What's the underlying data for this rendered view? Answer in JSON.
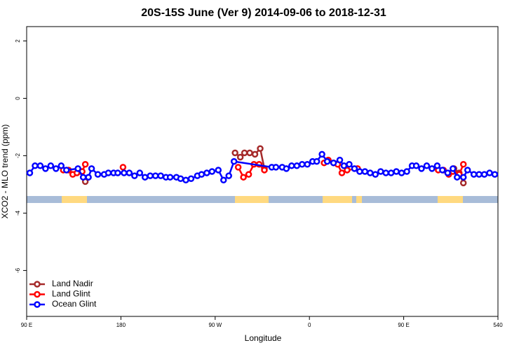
{
  "chart_data": {
    "type": "line",
    "title": "20S-15S June (Ver 9)   2014-09-06 to 2018-12-31",
    "x_label": "Longitude",
    "y_label": "XCO2 - MLO trend (ppm)",
    "xlim": [
      90,
      540
    ],
    "ylim": [
      -7.6,
      2.5
    ],
    "xticks": [
      {
        "value": 90,
        "label": "90 E"
      },
      180,
      {
        "value": 270,
        "label": "90 W"
      },
      {
        "value": 360,
        "label": "0"
      },
      {
        "value": 450,
        "label": "90 E"
      },
      540
    ],
    "yticks": [
      2,
      0,
      -2,
      -4,
      -6
    ],
    "legend": "bottom-left",
    "series": [
      {
        "name": "Land Nadir",
        "color": "#a52a2a",
        "x": [
          142,
          146,
          200,
          289,
          294,
          298,
          303,
          308,
          313,
          317,
          400,
          498,
          503,
          507
        ],
        "values": [
          -2.55,
          -2.9,
          null,
          -1.9,
          -2.05,
          -1.9,
          -1.9,
          -1.95,
          -1.75,
          -2.45,
          null,
          -2.45,
          -2.6,
          -2.95
        ]
      },
      {
        "name": "Land Glint",
        "color": "#ff0000",
        "x": [
          125,
          130,
          134,
          138,
          143,
          146,
          160,
          182,
          250,
          292,
          297,
          302,
          307,
          312,
          317,
          350,
          374,
          378,
          383,
          387,
          391,
          396,
          406,
          450,
          483,
          488,
          493,
          497,
          503,
          507
        ],
        "values": [
          -2.5,
          -2.5,
          -2.65,
          -2.6,
          -2.55,
          -2.3,
          null,
          -2.4,
          null,
          -2.4,
          -2.75,
          -2.65,
          -2.3,
          -2.3,
          -2.5,
          null,
          -2.25,
          -2.15,
          -2.25,
          -2.3,
          -2.6,
          -2.5,
          -2.45,
          null,
          -2.5,
          -2.5,
          -2.65,
          -2.55,
          -2.65,
          -2.3
        ]
      },
      {
        "name": "Ocean Glint",
        "color": "#0000ff",
        "x": [
          93,
          98,
          103,
          108,
          113,
          118,
          123,
          128,
          139,
          144,
          149,
          152,
          158,
          164,
          168,
          173,
          177,
          183,
          188,
          193,
          198,
          203,
          208,
          213,
          218,
          223,
          227,
          233,
          237,
          242,
          247,
          253,
          257,
          262,
          267,
          273,
          278,
          283,
          288,
          324,
          328,
          334,
          338,
          343,
          348,
          353,
          358,
          363,
          367,
          372,
          377,
          383,
          389,
          393,
          398,
          403,
          408,
          413,
          418,
          423,
          428,
          433,
          438,
          443,
          448,
          453,
          458,
          462,
          467,
          472,
          477,
          482,
          487,
          492,
          497,
          501,
          507,
          511,
          517,
          522,
          527,
          532,
          537
        ],
        "values": [
          -2.6,
          -2.35,
          -2.35,
          -2.45,
          -2.35,
          -2.45,
          -2.35,
          -2.5,
          -2.45,
          -2.75,
          -2.75,
          -2.45,
          -2.65,
          -2.65,
          -2.6,
          -2.6,
          -2.6,
          -2.6,
          -2.6,
          -2.7,
          -2.6,
          -2.75,
          -2.7,
          -2.7,
          -2.7,
          -2.75,
          -2.75,
          -2.75,
          -2.8,
          -2.85,
          -2.8,
          -2.7,
          -2.65,
          -2.6,
          -2.55,
          -2.5,
          -2.85,
          -2.7,
          -2.2,
          -2.4,
          -2.4,
          -2.4,
          -2.45,
          -2.35,
          -2.35,
          -2.3,
          -2.3,
          -2.2,
          -2.2,
          -1.95,
          -2.2,
          -2.25,
          -2.15,
          -2.35,
          -2.3,
          -2.45,
          -2.55,
          -2.55,
          -2.6,
          -2.65,
          -2.55,
          -2.6,
          -2.6,
          -2.55,
          -2.6,
          -2.55,
          -2.35,
          -2.35,
          -2.45,
          -2.35,
          -2.45,
          -2.35,
          -2.5,
          -2.6,
          -2.45,
          -2.75,
          -2.75,
          -2.5,
          -2.65,
          -2.65,
          -2.65,
          -2.6,
          -2.65
        ]
      }
    ]
  }
}
